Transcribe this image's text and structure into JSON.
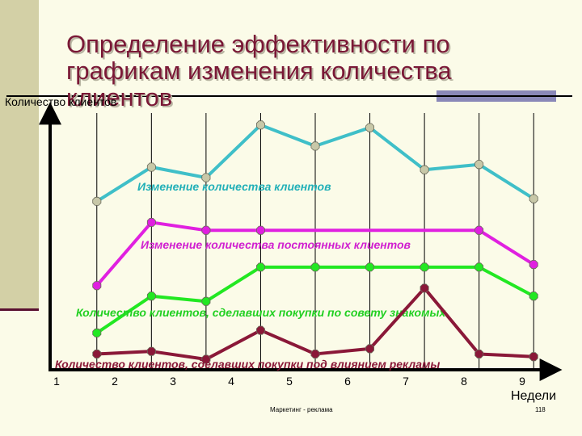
{
  "slide": {
    "title": "Определение эффективности по\nграфикам изменения количества\nклиентов",
    "footer": "Маркетинг - реклама",
    "page_number": "118"
  },
  "colors": {
    "title": "#7a1836",
    "sidebar": "#d3d0a6",
    "background": "#fbfbe8"
  },
  "chart_data": {
    "type": "line",
    "ylabel": "Количество клиентов",
    "xlabel": "Недели",
    "x": [
      1,
      2,
      3,
      4,
      5,
      6,
      7,
      8,
      9
    ],
    "categories": [
      "1",
      "2",
      "3",
      "4",
      "5",
      "6",
      "7",
      "8",
      "9"
    ],
    "xlim": [
      0.5,
      9.5
    ],
    "ylim": [
      0,
      100
    ],
    "grid": "vertical",
    "series": [
      {
        "name": "Изменение количества клиентов",
        "color": "#3fbfc8",
        "marker_color": "#c8c8a8",
        "x": [
          1,
          2,
          3,
          4,
          5,
          6,
          7,
          8,
          9
        ],
        "values": [
          64,
          77,
          73,
          93,
          85,
          92,
          76,
          78,
          65
        ]
      },
      {
        "name": "Изменение количества постоянных клиентов",
        "color": "#e020e0",
        "marker_color": "#e020e0",
        "x": [
          1,
          2,
          3,
          4,
          8,
          9
        ],
        "values": [
          32,
          56,
          53,
          53,
          53,
          40
        ]
      },
      {
        "name": "Количество клиентов, сделавших покупки по совету знакомых",
        "color": "#22e822",
        "marker_color": "#22e822",
        "x": [
          1,
          2,
          3,
          4,
          5,
          6,
          7,
          8,
          9
        ],
        "values": [
          14,
          28,
          26,
          39,
          39,
          39,
          39,
          39,
          28
        ]
      },
      {
        "name": "Количество клиентов, сделавших покупки под влиянием рекламы",
        "color": "#8a1838",
        "marker_color": "#8a1838",
        "x": [
          1,
          2,
          3,
          4,
          5,
          6,
          7,
          8,
          9
        ],
        "values": [
          6,
          7,
          4,
          15,
          6,
          8,
          31,
          6,
          5
        ]
      }
    ]
  }
}
